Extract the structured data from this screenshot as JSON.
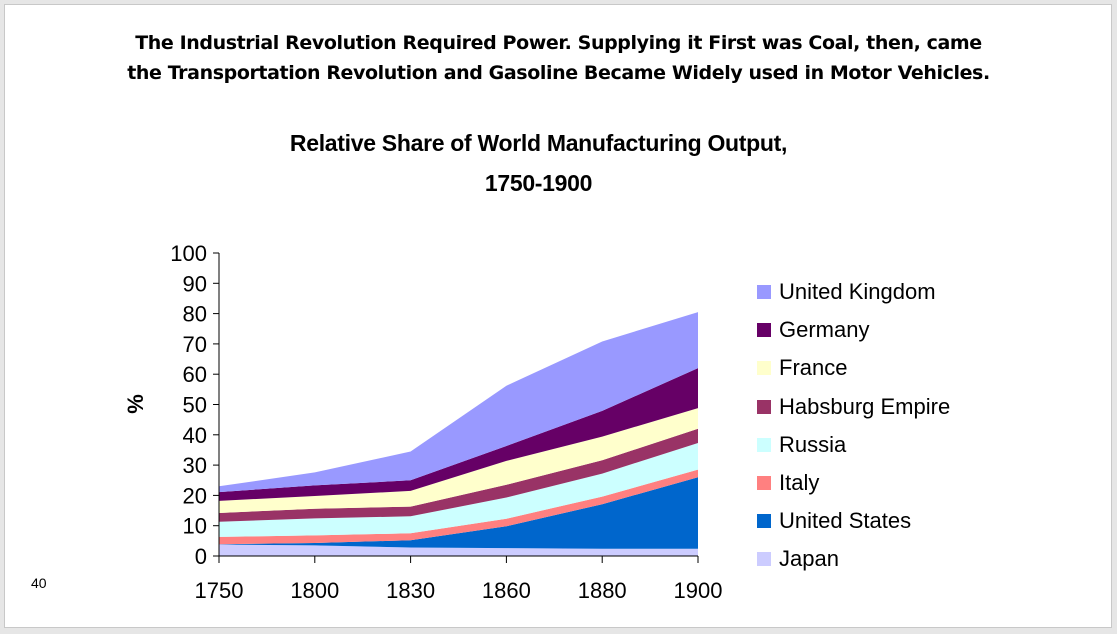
{
  "slide": {
    "heading_lines": [
      "The Industrial Revolution Required Power. Supplying it First was Coal, then, came",
      "the Transportation Revolution and Gasoline Became Widely used in Motor Vehicles."
    ],
    "page_number": "40"
  },
  "chart_data": {
    "type": "area",
    "stacked": true,
    "title": "Relative Share of World Manufacturing Output,",
    "subtitle": "1750-1900",
    "xlabel": "",
    "ylabel": "%",
    "ylim": [
      0,
      100
    ],
    "yticks": [
      0,
      10,
      20,
      30,
      40,
      50,
      60,
      70,
      80,
      90,
      100
    ],
    "x": [
      "1750",
      "1800",
      "1830",
      "1860",
      "1880",
      "1900"
    ],
    "grid": false,
    "legend_position": "right",
    "series": [
      {
        "name": "Japan",
        "color": "#ccccff",
        "values": [
          3.8,
          3.5,
          2.8,
          2.6,
          2.4,
          2.4
        ]
      },
      {
        "name": "United States",
        "color": "#0066cc",
        "values": [
          0.1,
          0.8,
          2.4,
          7.2,
          14.7,
          23.6
        ]
      },
      {
        "name": "Italy",
        "color": "#ff8080",
        "values": [
          2.4,
          2.5,
          2.3,
          2.5,
          2.5,
          2.5
        ]
      },
      {
        "name": "Russia",
        "color": "#ccffff",
        "values": [
          5.0,
          5.6,
          5.6,
          7.0,
          7.6,
          8.8
        ]
      },
      {
        "name": "Habsburg Empire",
        "color": "#993366",
        "values": [
          2.9,
          3.2,
          3.2,
          4.2,
          4.4,
          4.7
        ]
      },
      {
        "name": "France",
        "color": "#ffffcc",
        "values": [
          4.0,
          4.2,
          5.2,
          7.9,
          7.8,
          6.8
        ]
      },
      {
        "name": "Germany",
        "color": "#660066",
        "values": [
          2.9,
          3.5,
          3.5,
          4.9,
          8.5,
          13.2
        ]
      },
      {
        "name": "United Kingdom",
        "color": "#9999ff",
        "values": [
          1.9,
          4.3,
          9.5,
          19.9,
          22.9,
          18.5
        ]
      }
    ],
    "legend_order": [
      "United Kingdom",
      "Germany",
      "France",
      "Habsburg Empire",
      "Russia",
      "Italy",
      "United States",
      "Japan"
    ]
  }
}
